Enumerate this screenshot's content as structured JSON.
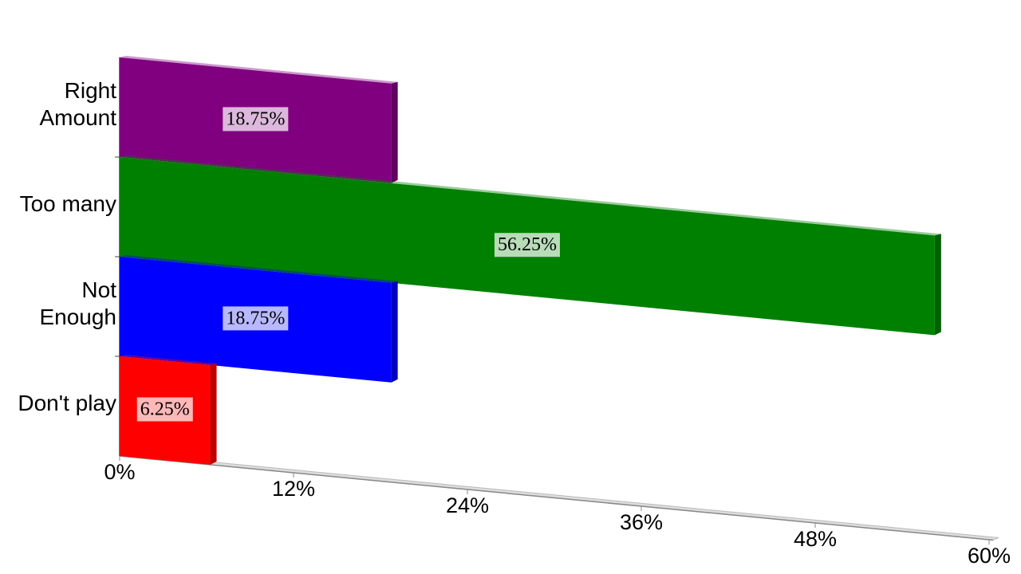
{
  "chart_data": {
    "type": "bar",
    "categories": [
      "Right\nAmount",
      "Too many",
      "Not\nEnough",
      "Don't play"
    ],
    "values": [
      18.75,
      56.25,
      18.75,
      6.25
    ],
    "value_labels": [
      "18.75%",
      "56.25%",
      "18.75%",
      "6.25%"
    ],
    "colors": [
      "#800080",
      "#008000",
      "#0000ff",
      "#ff0000"
    ],
    "xlim": [
      0,
      60
    ],
    "xticks": [
      {
        "value": 0,
        "label": "0%"
      },
      {
        "value": 12,
        "label": "12%"
      },
      {
        "value": 24,
        "label": "24%"
      },
      {
        "value": 36,
        "label": "36%"
      },
      {
        "value": 48,
        "label": "48%"
      },
      {
        "value": 60,
        "label": "60%"
      }
    ]
  }
}
